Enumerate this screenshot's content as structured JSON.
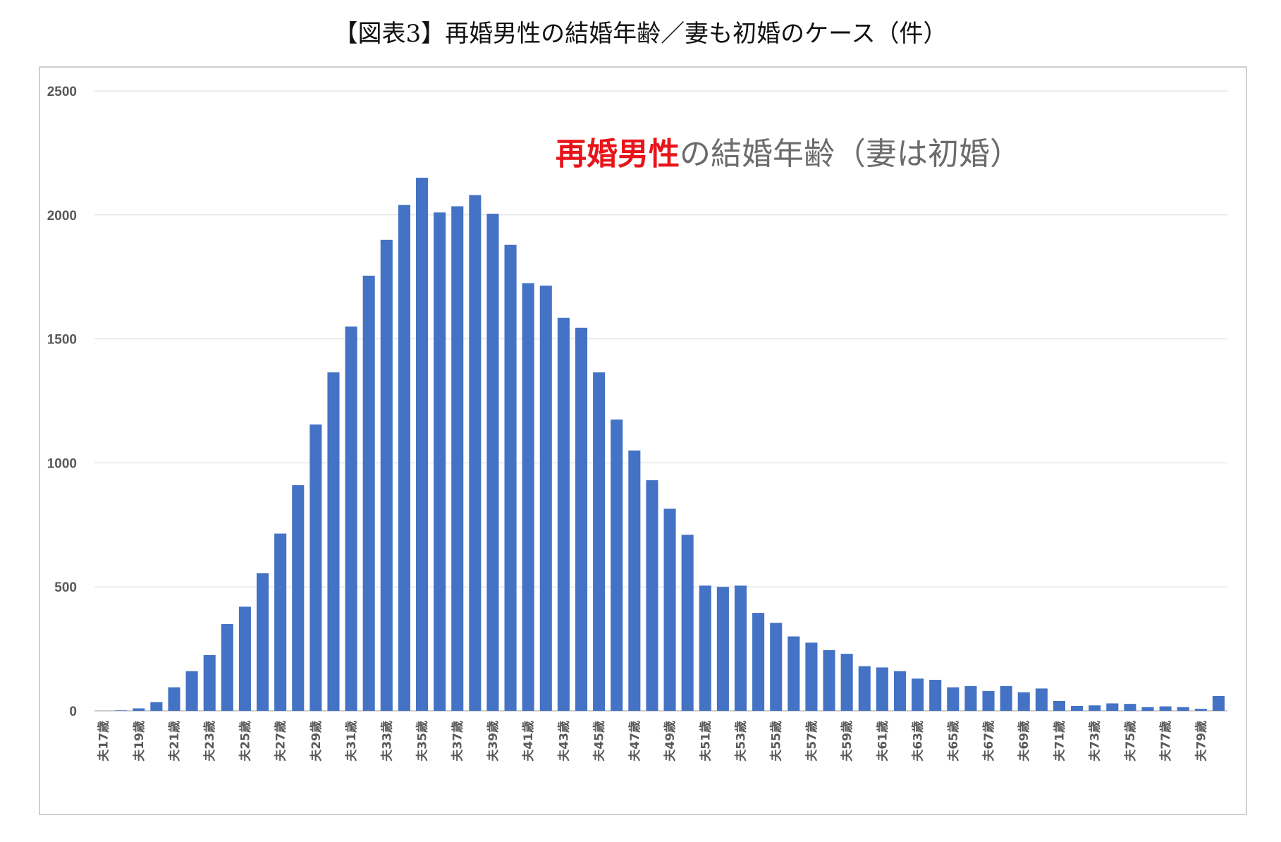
{
  "figure_title": "【図表3】再婚男性の結婚年齢／妻も初婚のケース（件）",
  "chart_data": {
    "type": "bar",
    "annotation": {
      "highlight": "再婚男性",
      "rest": "の結婚年齢（妻は初婚）",
      "highlight_color": "#e8141a",
      "rest_color": "#6b6b6b"
    },
    "bar_color": "#4472c4",
    "grid": true,
    "ylim": [
      0,
      2500
    ],
    "yticks": [
      0,
      500,
      1000,
      1500,
      2000,
      2500
    ],
    "categories": [
      "夫17歳",
      "夫18歳",
      "夫19歳",
      "夫20歳",
      "夫21歳",
      "夫22歳",
      "夫23歳",
      "夫24歳",
      "夫25歳",
      "夫26歳",
      "夫27歳",
      "夫28歳",
      "夫29歳",
      "夫30歳",
      "夫31歳",
      "夫32歳",
      "夫33歳",
      "夫34歳",
      "夫35歳",
      "夫36歳",
      "夫37歳",
      "夫38歳",
      "夫39歳",
      "夫40歳",
      "夫41歳",
      "夫42歳",
      "夫43歳",
      "夫44歳",
      "夫45歳",
      "夫46歳",
      "夫47歳",
      "夫48歳",
      "夫49歳",
      "夫50歳",
      "夫51歳",
      "夫52歳",
      "夫53歳",
      "夫54歳",
      "夫55歳",
      "夫56歳",
      "夫57歳",
      "夫58歳",
      "夫59歳",
      "夫60歳",
      "夫61歳",
      "夫62歳",
      "夫63歳",
      "夫64歳",
      "夫65歳",
      "夫66歳",
      "夫67歳",
      "夫68歳",
      "夫69歳",
      "夫70歳",
      "夫71歳",
      "夫72歳",
      "夫73歳",
      "夫74歳",
      "夫75歳",
      "夫76歳",
      "夫77歳",
      "夫78歳",
      "夫79歳",
      "夫80歳"
    ],
    "visible_tick_labels": [
      "夫17歳",
      "夫19歳",
      "夫21歳",
      "夫23歳",
      "夫25歳",
      "夫27歳",
      "夫29歳",
      "夫31歳",
      "夫33歳",
      "夫35歳",
      "夫37歳",
      "夫39歳",
      "夫41歳",
      "夫43歳",
      "夫45歳",
      "夫47歳",
      "夫49歳",
      "夫51歳",
      "夫53歳",
      "夫55歳",
      "夫57歳",
      "夫59歳",
      "夫61歳",
      "夫63歳",
      "夫65歳",
      "夫67歳",
      "夫69歳",
      "夫71歳",
      "夫73歳",
      "夫75歳",
      "夫77歳",
      "夫79歳"
    ],
    "values": [
      0,
      2,
      10,
      35,
      95,
      160,
      225,
      350,
      420,
      555,
      715,
      910,
      1155,
      1365,
      1550,
      1755,
      1900,
      2040,
      2150,
      2010,
      2035,
      2080,
      2005,
      1880,
      1725,
      1715,
      1585,
      1545,
      1365,
      1175,
      1050,
      930,
      815,
      710,
      505,
      500,
      505,
      395,
      355,
      300,
      275,
      245,
      230,
      180,
      175,
      160,
      130,
      125,
      95,
      100,
      80,
      100,
      75,
      90,
      40,
      20,
      22,
      30,
      28,
      15,
      18,
      15,
      8,
      60
    ]
  }
}
